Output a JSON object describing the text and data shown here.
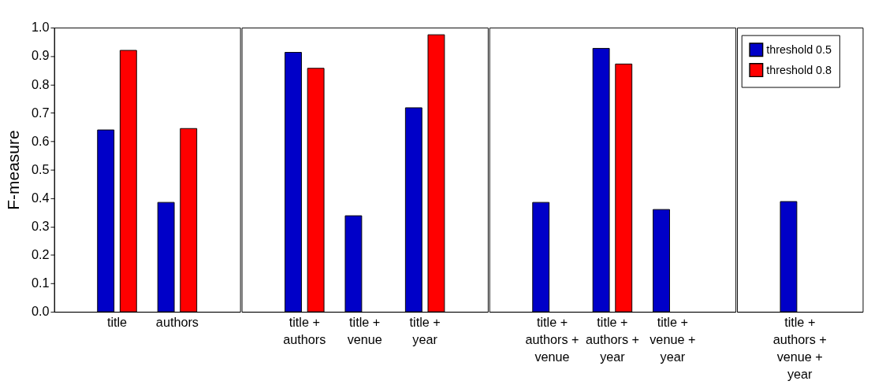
{
  "chart_data": [
    {
      "type": "bar",
      "ylabel": "F-measure",
      "categories": [
        "title",
        "authors"
      ],
      "ylim": [
        0,
        1
      ],
      "yticks": [
        {
          "value": 0,
          "label": "0.0"
        },
        0.1,
        0.2,
        0.3,
        0.4,
        0.5,
        0.6,
        0.7,
        0.8,
        0.9,
        {
          "value": 1,
          "label": "1.0"
        }
      ],
      "legend": "top right",
      "series": [
        {
          "name": "threshold 0.5",
          "color": "#0000c8",
          "values": [
            0.64,
            0.385
          ]
        },
        {
          "name": "threshold 0.8",
          "color": "#ff0000",
          "values": [
            0.92,
            0.645
          ]
        }
      ]
    },
    {
      "type": "bar",
      "categories": [
        "title + authors",
        "title + venue",
        "title + year"
      ],
      "ylim": [
        0,
        1
      ],
      "tick_labels": "x",
      "series": [
        {
          "name": "threshold 0.5",
          "color": "#0000c8",
          "values": [
            0.913,
            0.338,
            0.718
          ]
        },
        {
          "name": "threshold 0.8",
          "color": "#ff0000",
          "values": [
            0.857,
            null,
            0.975
          ]
        }
      ]
    },
    {
      "type": "bar",
      "categories": [
        "title + authors + venue",
        "title + authors + year",
        "title + venue + year"
      ],
      "ylim": [
        0,
        1
      ],
      "tick_labels": "x",
      "series": [
        {
          "name": "threshold 0.5",
          "color": "#0000c8",
          "values": [
            0.385,
            0.927,
            0.36
          ]
        },
        {
          "name": "threshold 0.8",
          "color": "#ff0000",
          "values": [
            null,
            0.872,
            null
          ]
        }
      ]
    },
    {
      "type": "bar",
      "categories": [
        "title + authors + venue + year"
      ],
      "ylim": [
        0,
        1
      ],
      "tick_labels": "x",
      "series": [
        {
          "name": "threshold 0.5",
          "color": "#0000c8",
          "values": [
            0.388
          ]
        },
        {
          "name": "threshold 0.8",
          "color": "#ff0000",
          "values": [
            null
          ]
        }
      ]
    }
  ]
}
